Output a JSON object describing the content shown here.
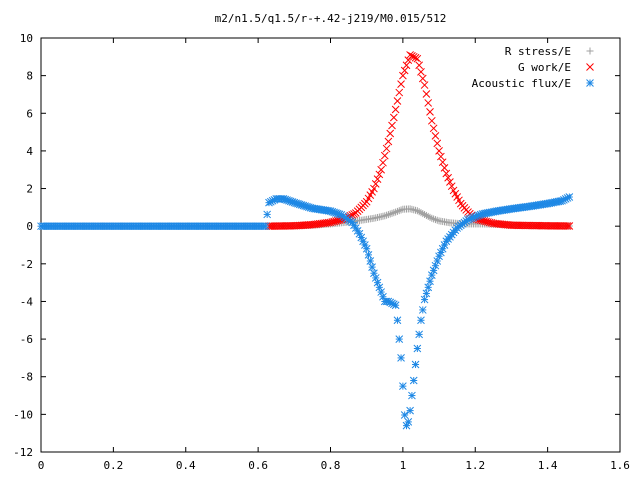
{
  "chart_data": {
    "type": "scatter",
    "title": "m2/n1.5/q1.5/r-+.42-j219/M0.015/512",
    "xlabel": "",
    "ylabel": "",
    "xlim": [
      0,
      1.6
    ],
    "ylim": [
      -12,
      10
    ],
    "xticks": [
      "0",
      "0.2",
      "0.4",
      "0.6",
      "0.8",
      "1",
      "1.2",
      "1.4",
      "1.6"
    ],
    "yticks": [
      "10",
      "8",
      "6",
      "4",
      "2",
      "0",
      "-2",
      "-4",
      "-6",
      "-8",
      "-10",
      "-12"
    ],
    "grid": false,
    "legend_position": "top-right",
    "series": [
      {
        "name": "R stress/E",
        "marker": "+",
        "color": "#a0a0a0",
        "points": [
          [
            0.63,
            0.01
          ],
          [
            0.7,
            0.02
          ],
          [
            0.75,
            0.05
          ],
          [
            0.8,
            0.12
          ],
          [
            0.85,
            0.22
          ],
          [
            0.88,
            0.3
          ],
          [
            0.92,
            0.42
          ],
          [
            0.95,
            0.55
          ],
          [
            0.98,
            0.75
          ],
          [
            1.0,
            0.9
          ],
          [
            1.02,
            0.92
          ],
          [
            1.04,
            0.82
          ],
          [
            1.06,
            0.62
          ],
          [
            1.08,
            0.42
          ],
          [
            1.1,
            0.28
          ],
          [
            1.13,
            0.18
          ],
          [
            1.17,
            0.12
          ],
          [
            1.22,
            0.12
          ],
          [
            1.26,
            0.1
          ],
          [
            1.3,
            0.06
          ],
          [
            1.35,
            0.03
          ],
          [
            1.4,
            0.02
          ],
          [
            1.46,
            0.01
          ]
        ]
      },
      {
        "name": "G work/E",
        "marker": "x",
        "color": "#ff0000",
        "points": [
          [
            0.63,
            0.0
          ],
          [
            0.7,
            0.02
          ],
          [
            0.75,
            0.08
          ],
          [
            0.8,
            0.2
          ],
          [
            0.84,
            0.4
          ],
          [
            0.87,
            0.7
          ],
          [
            0.9,
            1.3
          ],
          [
            0.92,
            2.0
          ],
          [
            0.94,
            3.0
          ],
          [
            0.96,
            4.5
          ],
          [
            0.98,
            6.2
          ],
          [
            1.0,
            8.0
          ],
          [
            1.02,
            9.1
          ],
          [
            1.04,
            8.9
          ],
          [
            1.06,
            7.5
          ],
          [
            1.08,
            5.6
          ],
          [
            1.1,
            4.0
          ],
          [
            1.12,
            2.8
          ],
          [
            1.14,
            1.9
          ],
          [
            1.16,
            1.2
          ],
          [
            1.18,
            0.75
          ],
          [
            1.2,
            0.4
          ],
          [
            1.25,
            0.15
          ],
          [
            1.3,
            0.05
          ],
          [
            1.4,
            0.02
          ],
          [
            1.46,
            0.01
          ]
        ]
      },
      {
        "name": "Acoustic flux/E",
        "marker": "*",
        "color": "#1e88e5",
        "points": [
          [
            0.0,
            0.0
          ],
          [
            0.1,
            0.0
          ],
          [
            0.2,
            0.0
          ],
          [
            0.3,
            0.0
          ],
          [
            0.4,
            0.0
          ],
          [
            0.5,
            0.0
          ],
          [
            0.6,
            0.0
          ],
          [
            0.62,
            0.0
          ],
          [
            0.63,
            1.25
          ],
          [
            0.65,
            1.45
          ],
          [
            0.67,
            1.45
          ],
          [
            0.7,
            1.25
          ],
          [
            0.75,
            0.95
          ],
          [
            0.8,
            0.8
          ],
          [
            0.83,
            0.6
          ],
          [
            0.86,
            0.2
          ],
          [
            0.88,
            -0.4
          ],
          [
            0.9,
            -1.2
          ],
          [
            0.92,
            -2.5
          ],
          [
            0.94,
            -3.5
          ],
          [
            0.95,
            -4.0
          ],
          [
            0.96,
            -4.0
          ],
          [
            0.97,
            -4.1
          ],
          [
            0.98,
            -4.2
          ],
          [
            0.985,
            -5.0
          ],
          [
            0.99,
            -6.0
          ],
          [
            0.995,
            -7.0
          ],
          [
            1.0,
            -8.5
          ],
          [
            1.003,
            -9.5
          ],
          [
            1.006,
            -10.3
          ],
          [
            1.01,
            -10.6
          ],
          [
            1.015,
            -10.4
          ],
          [
            1.02,
            -9.8
          ],
          [
            1.03,
            -8.2
          ],
          [
            1.04,
            -6.5
          ],
          [
            1.05,
            -5.0
          ],
          [
            1.06,
            -3.9
          ],
          [
            1.08,
            -2.6
          ],
          [
            1.1,
            -1.6
          ],
          [
            1.12,
            -0.8
          ],
          [
            1.15,
            -0.1
          ],
          [
            1.18,
            0.35
          ],
          [
            1.22,
            0.65
          ],
          [
            1.26,
            0.8
          ],
          [
            1.3,
            0.92
          ],
          [
            1.35,
            1.05
          ],
          [
            1.4,
            1.2
          ],
          [
            1.44,
            1.35
          ],
          [
            1.46,
            1.55
          ]
        ]
      }
    ]
  }
}
